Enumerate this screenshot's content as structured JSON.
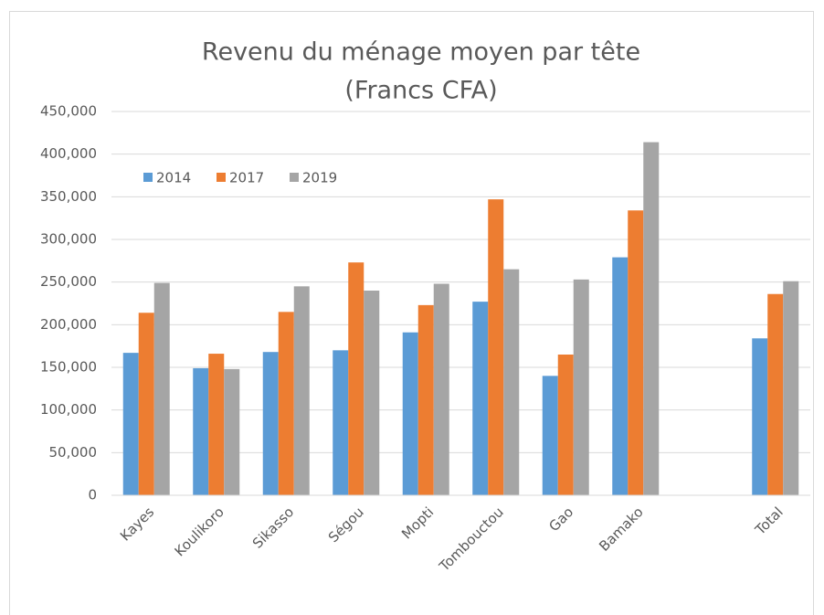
{
  "chart_data": {
    "type": "bar",
    "title": "Revenu du ménage moyen par tête",
    "subtitle": "(Francs CFA)",
    "categories": [
      "Kayes",
      "Koulikoro",
      "Sikasso",
      "Ségou",
      "Mopti",
      "Tombouctou",
      "Gao",
      "Bamako",
      null,
      "Total"
    ],
    "series": [
      {
        "name": "2014",
        "color": "#5b9bd5",
        "values": [
          167000,
          149000,
          168000,
          170000,
          191000,
          227000,
          140000,
          279000,
          null,
          184000
        ]
      },
      {
        "name": "2017",
        "color": "#ed7d31",
        "values": [
          214000,
          166000,
          215000,
          273000,
          223000,
          347000,
          165000,
          334000,
          null,
          236000
        ]
      },
      {
        "name": "2019",
        "color": "#a5a5a5",
        "values": [
          249000,
          148000,
          245000,
          240000,
          248000,
          265000,
          253000,
          414000,
          null,
          251000
        ]
      }
    ],
    "ylim": [
      0,
      450000
    ],
    "yticks": [
      0,
      {
        "value": 50000,
        "label": "50,000"
      },
      {
        "value": 100000,
        "label": "100,000"
      },
      {
        "value": 150000,
        "label": "150,000"
      },
      {
        "value": 200000,
        "label": "200,000"
      },
      {
        "value": 250000,
        "label": "250,000"
      },
      {
        "value": 300000,
        "label": "300,000"
      },
      {
        "value": 350000,
        "label": "350,000"
      },
      {
        "value": 400000,
        "label": "400,000"
      },
      {
        "value": 450000,
        "label": "450,000"
      }
    ],
    "grid": true,
    "legend": "top-left"
  }
}
